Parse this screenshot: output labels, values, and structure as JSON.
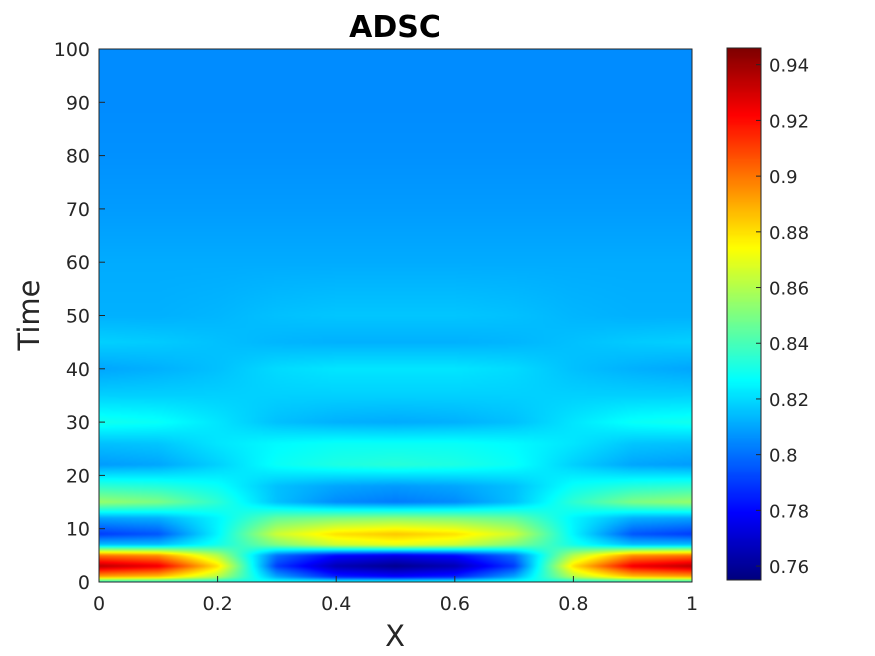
{
  "chart_data": {
    "type": "heatmap",
    "title": "ADSC",
    "xlabel": "X",
    "ylabel": "Time",
    "xlim": [
      0,
      1
    ],
    "ylim": [
      0,
      100
    ],
    "xticks": [
      0,
      0.2,
      0.4,
      0.6,
      0.8,
      1
    ],
    "xtick_labels": [
      "0",
      "0.2",
      "0.4",
      "0.6",
      "0.8",
      "1"
    ],
    "yticks": [
      0,
      10,
      20,
      30,
      40,
      50,
      60,
      70,
      80,
      90,
      100
    ],
    "ytick_labels": [
      "0",
      "10",
      "20",
      "30",
      "40",
      "50",
      "60",
      "70",
      "80",
      "90",
      "100"
    ],
    "colormap": "jet",
    "clim": [
      0.755,
      0.946
    ],
    "colorbar_ticks": [
      0.76,
      0.78,
      0.8,
      0.82,
      0.84,
      0.86,
      0.88,
      0.9,
      0.92,
      0.94
    ],
    "colorbar_tick_labels": [
      "0.76",
      "0.78",
      "0.8",
      "0.82",
      "0.84",
      "0.86",
      "0.88",
      "0.9",
      "0.92",
      "0.94"
    ],
    "colorbar_location": "right",
    "grid": false,
    "x_samples": [
      0,
      0.1,
      0.2,
      0.3,
      0.4,
      0.5,
      0.6,
      0.7,
      0.8,
      0.9,
      1
    ],
    "time_samples": [
      0,
      1,
      3,
      5,
      7,
      9,
      12,
      15,
      18,
      22,
      26,
      30,
      35,
      40,
      45,
      50,
      60,
      70,
      80,
      90,
      100
    ],
    "values": [
      [
        0.83,
        0.83,
        0.83,
        0.83,
        0.83,
        0.83,
        0.83,
        0.83,
        0.83,
        0.83,
        0.83
      ],
      [
        0.89,
        0.885,
        0.86,
        0.81,
        0.785,
        0.78,
        0.785,
        0.81,
        0.86,
        0.885,
        0.89
      ],
      [
        0.935,
        0.925,
        0.88,
        0.79,
        0.765,
        0.758,
        0.765,
        0.79,
        0.88,
        0.925,
        0.935
      ],
      [
        0.9,
        0.895,
        0.86,
        0.8,
        0.78,
        0.775,
        0.78,
        0.8,
        0.86,
        0.895,
        0.9
      ],
      [
        0.815,
        0.815,
        0.83,
        0.85,
        0.865,
        0.87,
        0.865,
        0.85,
        0.83,
        0.815,
        0.815
      ],
      [
        0.79,
        0.795,
        0.825,
        0.865,
        0.88,
        0.885,
        0.88,
        0.865,
        0.825,
        0.795,
        0.79
      ],
      [
        0.81,
        0.812,
        0.825,
        0.845,
        0.85,
        0.852,
        0.85,
        0.845,
        0.825,
        0.812,
        0.81
      ],
      [
        0.855,
        0.85,
        0.835,
        0.815,
        0.805,
        0.802,
        0.805,
        0.815,
        0.835,
        0.85,
        0.855
      ],
      [
        0.835,
        0.833,
        0.828,
        0.815,
        0.81,
        0.808,
        0.81,
        0.815,
        0.828,
        0.833,
        0.835
      ],
      [
        0.808,
        0.81,
        0.818,
        0.828,
        0.832,
        0.834,
        0.832,
        0.828,
        0.818,
        0.81,
        0.808
      ],
      [
        0.815,
        0.816,
        0.822,
        0.826,
        0.828,
        0.828,
        0.828,
        0.826,
        0.822,
        0.816,
        0.815
      ],
      [
        0.83,
        0.828,
        0.822,
        0.815,
        0.812,
        0.811,
        0.812,
        0.815,
        0.822,
        0.828,
        0.83
      ],
      [
        0.818,
        0.818,
        0.818,
        0.818,
        0.818,
        0.818,
        0.818,
        0.818,
        0.818,
        0.818,
        0.818
      ],
      [
        0.81,
        0.812,
        0.815,
        0.82,
        0.822,
        0.822,
        0.822,
        0.82,
        0.815,
        0.812,
        0.81
      ],
      [
        0.818,
        0.817,
        0.815,
        0.813,
        0.812,
        0.812,
        0.812,
        0.813,
        0.815,
        0.817,
        0.818
      ],
      [
        0.812,
        0.812,
        0.813,
        0.815,
        0.816,
        0.816,
        0.816,
        0.815,
        0.813,
        0.812,
        0.812
      ],
      [
        0.811,
        0.811,
        0.811,
        0.811,
        0.811,
        0.811,
        0.811,
        0.811,
        0.811,
        0.811,
        0.811
      ],
      [
        0.808,
        0.808,
        0.808,
        0.808,
        0.808,
        0.808,
        0.808,
        0.808,
        0.808,
        0.808,
        0.808
      ],
      [
        0.806,
        0.806,
        0.806,
        0.806,
        0.806,
        0.806,
        0.806,
        0.806,
        0.806,
        0.806,
        0.806
      ],
      [
        0.805,
        0.805,
        0.805,
        0.805,
        0.805,
        0.805,
        0.805,
        0.805,
        0.805,
        0.805,
        0.805
      ],
      [
        0.805,
        0.805,
        0.805,
        0.805,
        0.805,
        0.805,
        0.805,
        0.805,
        0.805,
        0.805,
        0.805
      ]
    ]
  }
}
